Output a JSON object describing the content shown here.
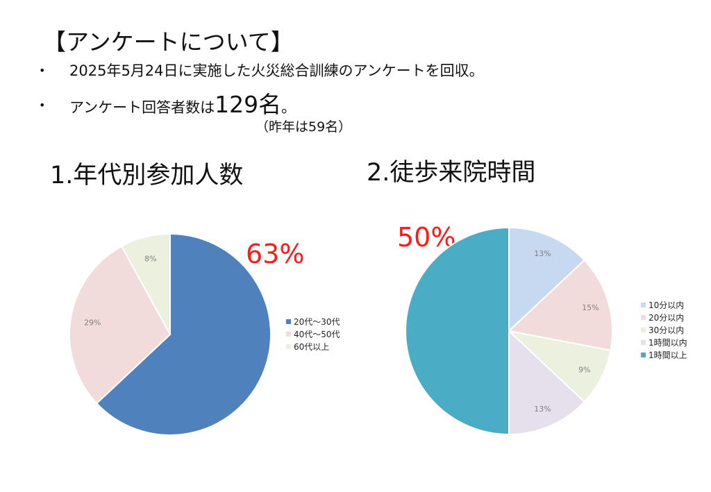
{
  "heading": "【アンケートについて】",
  "bullets": [
    {
      "marker": "•",
      "text": "2025年5月24日に実施した火災総合訓練のアンケートを回収。"
    },
    {
      "marker": "•",
      "text_prefix": "アンケート回答者数は",
      "text_emphasis": "129名",
      "text_suffix": "。"
    }
  ],
  "note": "（昨年は59名）",
  "charts": {
    "left": {
      "title": "1.年代別参加人数",
      "highlight": "63%"
    },
    "right": {
      "title": "2.徒歩来院時間",
      "highlight": "50%"
    }
  },
  "chart_data": [
    {
      "type": "pie",
      "title": "1.年代別参加人数",
      "categories": [
        "20代～30代",
        "40代～50代",
        "60代以上"
      ],
      "values": [
        63,
        29,
        8
      ],
      "labels": [
        "",
        "29%",
        "8%"
      ],
      "colors": [
        "#4f81bd",
        "#f2dcdb",
        "#ebf1de"
      ],
      "legend": "right"
    },
    {
      "type": "pie",
      "title": "2.徒歩来院時間",
      "categories": [
        "10分以内",
        "20分以内",
        "30分以内",
        "1時間以内",
        "1時間以上"
      ],
      "values": [
        13,
        15,
        9,
        13,
        50
      ],
      "labels": [
        "13%",
        "15%",
        "9%",
        "13%",
        ""
      ],
      "colors": [
        "#c6d9f1",
        "#f2dcdb",
        "#ebf1de",
        "#e5e0ec",
        "#4bacc6"
      ],
      "legend": "right"
    }
  ]
}
